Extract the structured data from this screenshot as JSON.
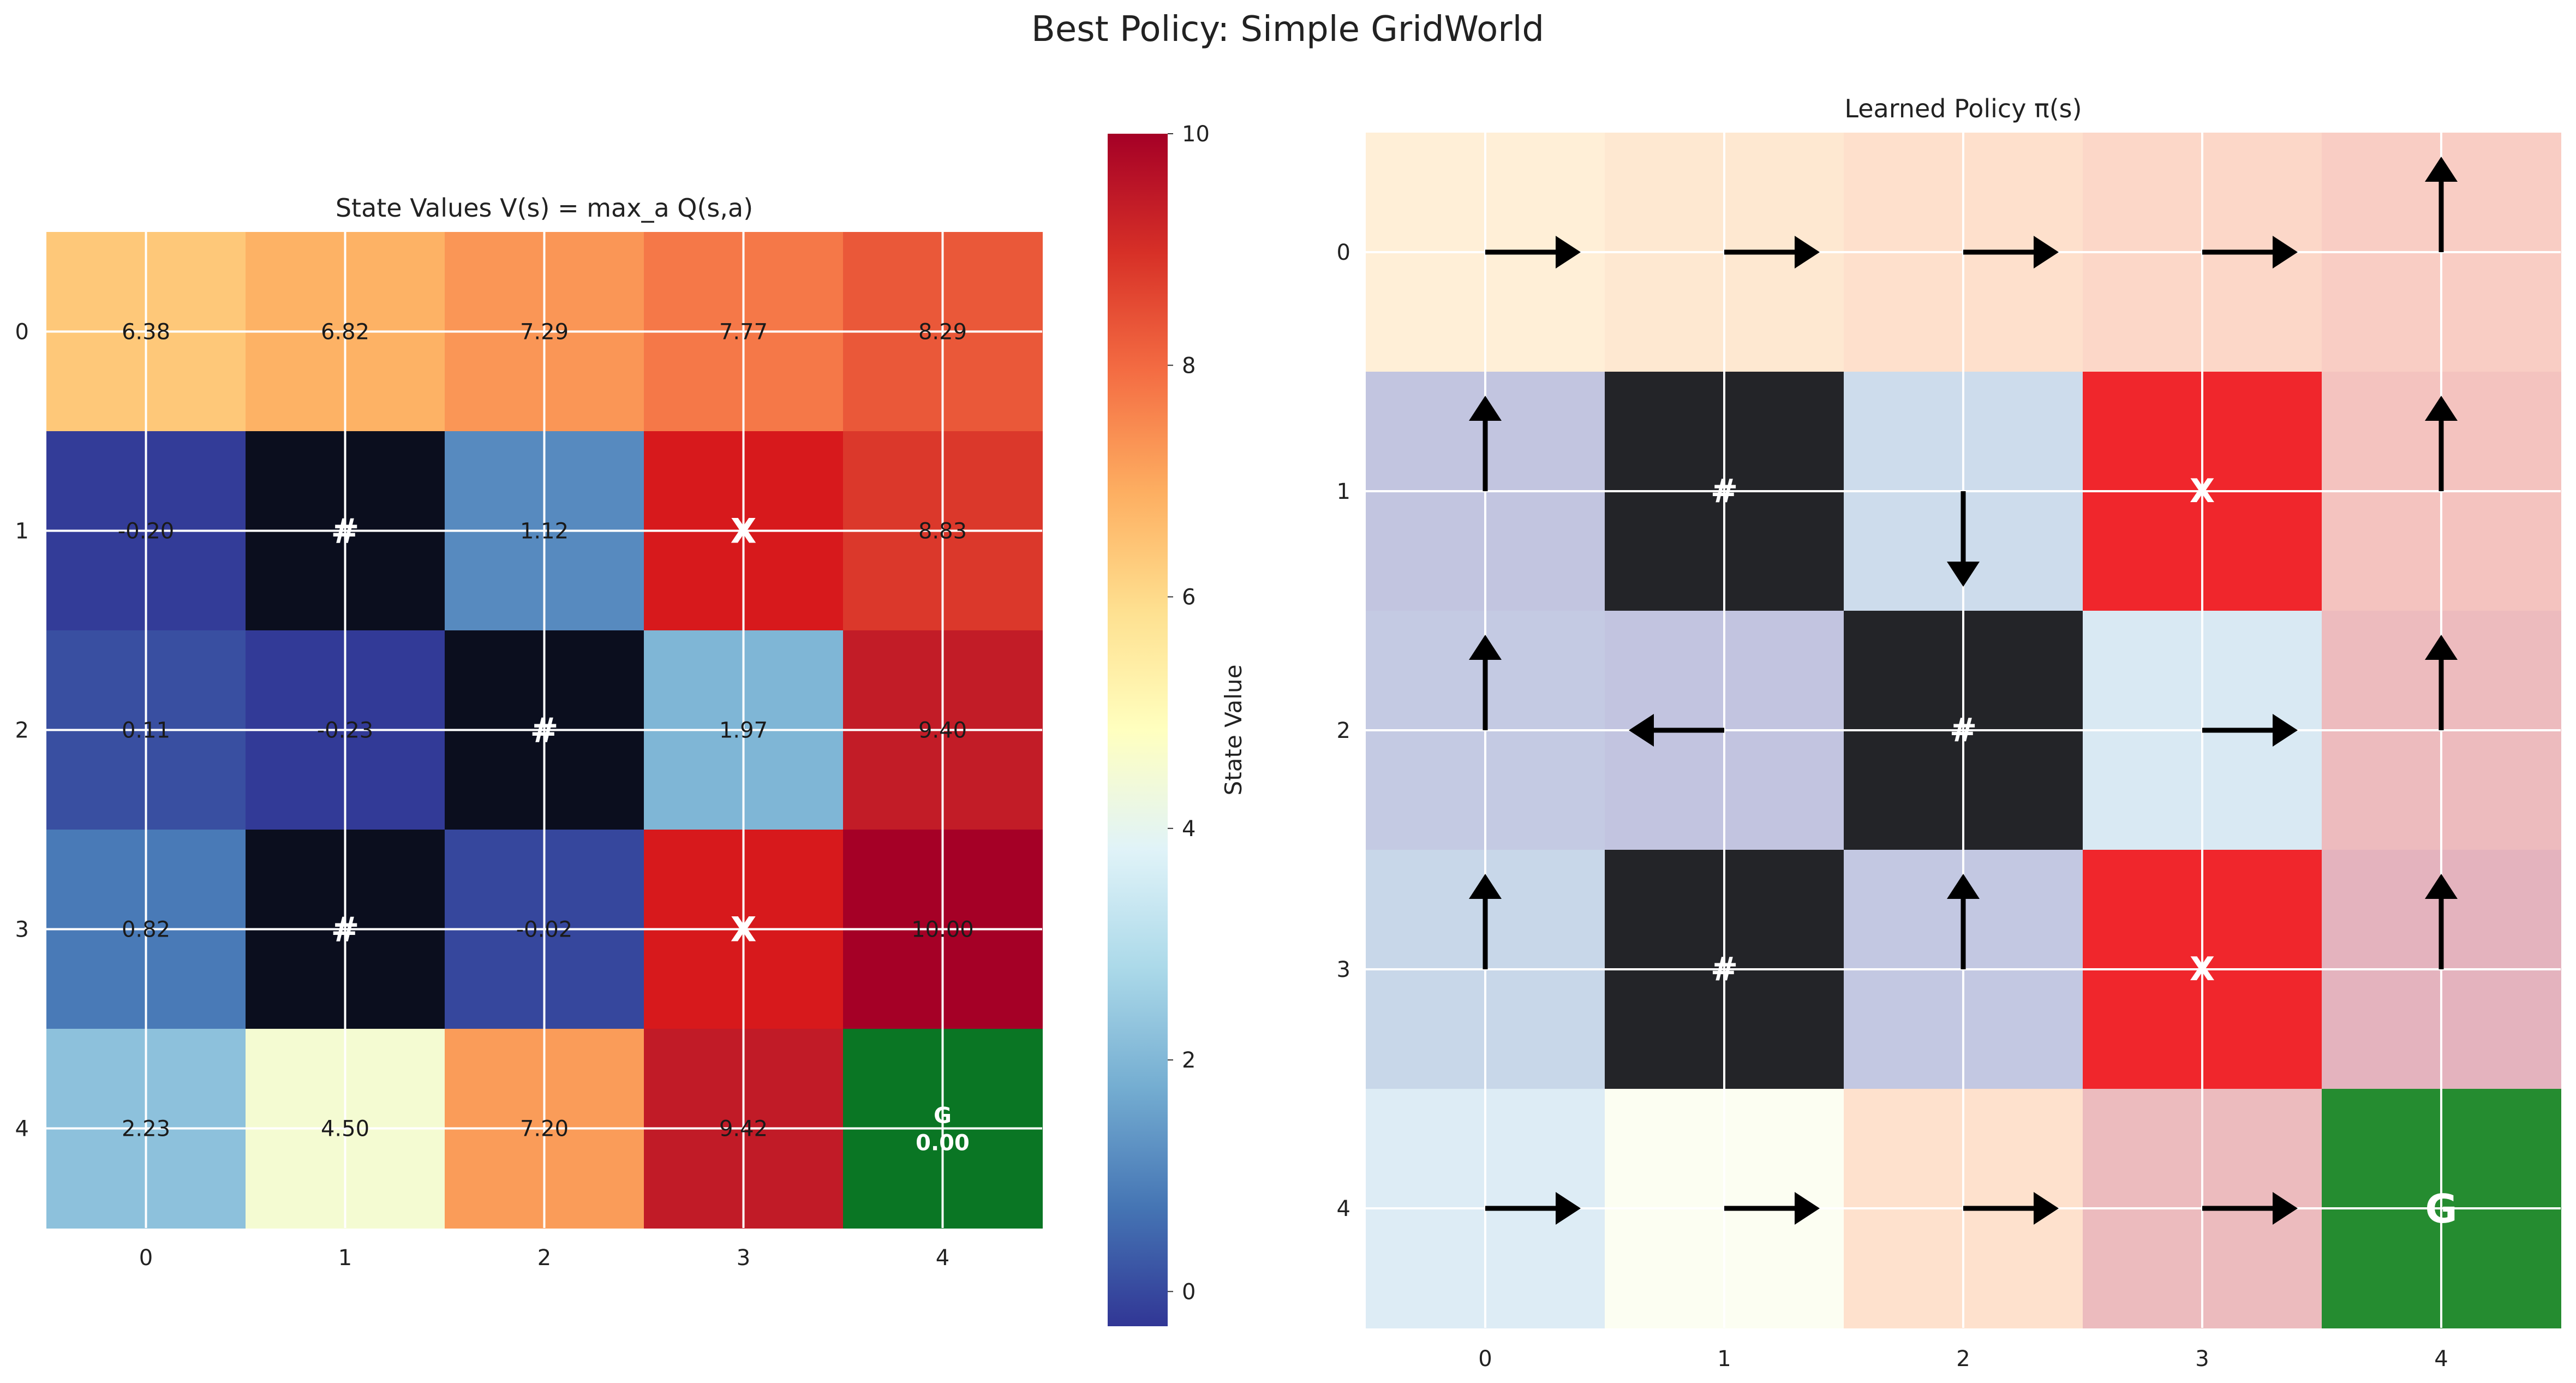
{
  "suptitle": "Best Policy: Simple GridWorld",
  "colors": {
    "wall": "#0b0e1e",
    "wall_policy": "#232428",
    "trap": "#d7191c",
    "trap_policy": "#f0262c",
    "goal": "#0a7624",
    "goal_policy": "#258c30",
    "arrow": "#000000",
    "grid_line": "#ffffff"
  },
  "chart_data": [
    {
      "type": "heatmap",
      "title": "State Values V(s) = max_a Q(s,a)",
      "xlabel": "",
      "ylabel": "",
      "xticks": [
        "0",
        "1",
        "2",
        "3",
        "4"
      ],
      "yticks": [
        "0",
        "1",
        "2",
        "3",
        "4"
      ],
      "colormap": "RdYlBu_r",
      "vmin": -0.3,
      "vmax": 10.0,
      "values": [
        [
          6.38,
          6.82,
          7.29,
          7.77,
          8.29
        ],
        [
          -0.2,
          null,
          1.12,
          9.5,
          8.83
        ],
        [
          0.11,
          -0.23,
          null,
          1.97,
          9.4
        ],
        [
          0.82,
          null,
          -0.02,
          9.5,
          10.0
        ],
        [
          2.23,
          4.5,
          7.2,
          9.42,
          0.0
        ]
      ],
      "cell_text": [
        [
          "6.38",
          "6.82",
          "7.29",
          "7.77",
          "8.29"
        ],
        [
          "-0.20",
          "#",
          "1.12",
          "X",
          "8.83"
        ],
        [
          "0.11",
          "-0.23",
          "#",
          "1.97",
          "9.40"
        ],
        [
          "0.82",
          "#",
          "-0.02",
          "X",
          "10.00"
        ],
        [
          "2.23",
          "4.50",
          "7.20",
          "9.42",
          "G\n0.00"
        ]
      ],
      "cell_kind": [
        [
          "v",
          "v",
          "v",
          "v",
          "v"
        ],
        [
          "v",
          "wall",
          "v",
          "trap",
          "v"
        ],
        [
          "v",
          "v",
          "wall",
          "v",
          "v"
        ],
        [
          "v",
          "wall",
          "v",
          "trap",
          "v"
        ],
        [
          "v",
          "v",
          "v",
          "v",
          "goal"
        ]
      ],
      "colorbar": {
        "label": "State Value",
        "ticks": [
          0,
          2,
          4,
          6,
          8,
          10
        ],
        "tick_labels": [
          "0",
          "2",
          "4",
          "6",
          "8",
          "10"
        ]
      }
    },
    {
      "type": "heatmap",
      "title": "Learned Policy π(s)",
      "xticks": [
        "0",
        "1",
        "2",
        "3",
        "4"
      ],
      "yticks": [
        "0",
        "1",
        "2",
        "3",
        "4"
      ],
      "background_alpha": 0.3,
      "cell_kind": [
        [
          "v",
          "v",
          "v",
          "v",
          "v"
        ],
        [
          "v",
          "wall",
          "v",
          "trap",
          "v"
        ],
        [
          "v",
          "v",
          "wall",
          "v",
          "v"
        ],
        [
          "v",
          "wall",
          "v",
          "trap",
          "v"
        ],
        [
          "v",
          "v",
          "v",
          "v",
          "goal"
        ]
      ],
      "cell_text": [
        [
          "",
          "",
          "",
          "",
          ""
        ],
        [
          "",
          "#",
          "",
          "X",
          ""
        ],
        [
          "",
          "",
          "#",
          "",
          ""
        ],
        [
          "",
          "#",
          "",
          "X",
          ""
        ],
        [
          "",
          "",
          "",
          "",
          "G"
        ]
      ],
      "actions": [
        [
          "right",
          "right",
          "right",
          "right",
          "up"
        ],
        [
          "up",
          "",
          "down",
          "",
          "up"
        ],
        [
          "up",
          "left",
          "",
          "right",
          "up"
        ],
        [
          "up",
          "",
          "up",
          "",
          "up"
        ],
        [
          "right",
          "right",
          "right",
          "right",
          ""
        ]
      ]
    }
  ]
}
